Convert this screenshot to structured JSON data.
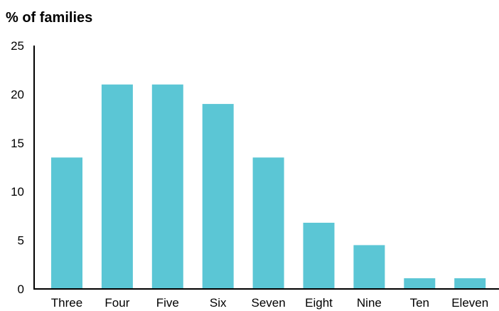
{
  "chart_data": {
    "type": "bar",
    "title": "% of families",
    "xlabel": "",
    "ylabel": "",
    "categories": [
      "Three",
      "Four",
      "Five",
      "Six",
      "Seven",
      "Eight",
      "Nine",
      "Ten",
      "Eleven"
    ],
    "values": [
      13.5,
      21,
      21,
      19,
      13.5,
      6.8,
      4.5,
      1.1,
      1.1
    ],
    "ylim": [
      0,
      25
    ],
    "yticks": [
      "0",
      "5",
      "10",
      "15",
      "20",
      "25"
    ],
    "grid": false,
    "bar_color": "#5bc6d5"
  }
}
